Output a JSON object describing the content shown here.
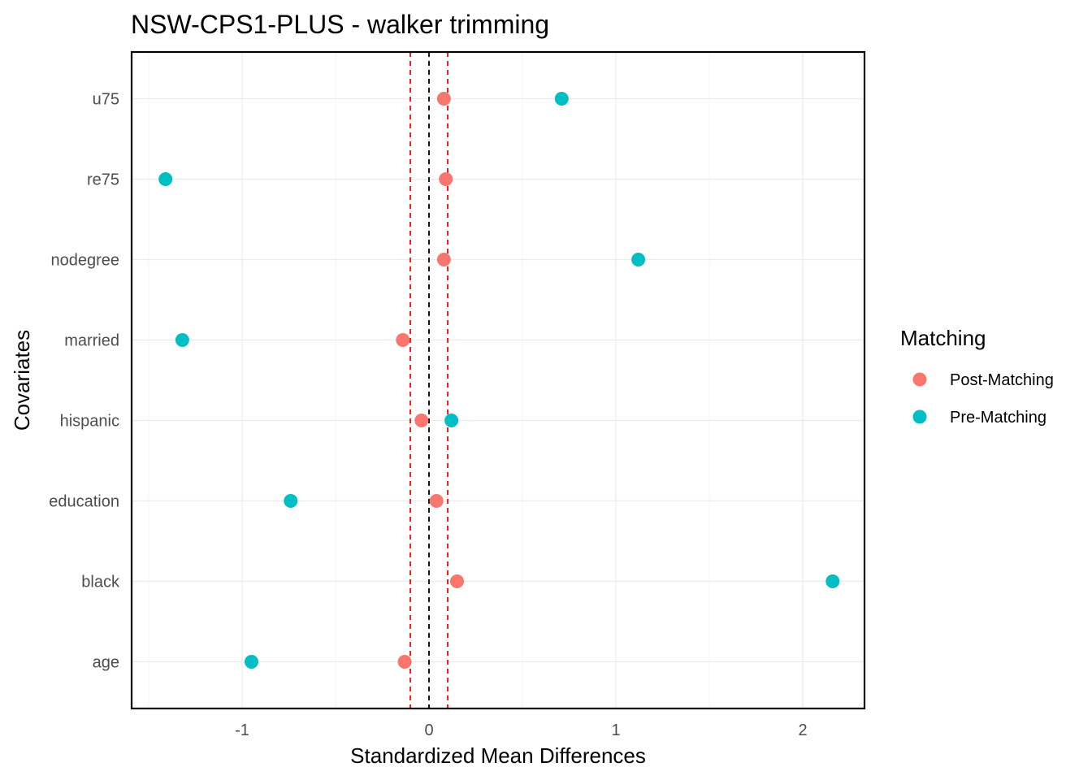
{
  "chart_data": {
    "type": "scatter",
    "title": "NSW-CPS1-PLUS - walker trimming",
    "xlabel": "Standardized Mean Differences",
    "ylabel": "Covariates",
    "xlim": [
      -1.6,
      2.35
    ],
    "x_ticks": [
      {
        "value": -1,
        "label": "-1"
      },
      {
        "value": 0,
        "label": "0"
      },
      {
        "value": 1,
        "label": "1"
      },
      {
        "value": 2,
        "label": "2"
      }
    ],
    "categories": [
      "age",
      "black",
      "education",
      "hispanic",
      "married",
      "nodegree",
      "re75",
      "u75"
    ],
    "reference_lines": [
      {
        "value": 0,
        "color": "#000000",
        "style": "dashed"
      },
      {
        "value": -0.1,
        "color": "#ff0000",
        "style": "dashed"
      },
      {
        "value": 0.1,
        "color": "#ff0000",
        "style": "dashed"
      }
    ],
    "series": [
      {
        "name": "Post-Matching",
        "color": "#f8766d",
        "values": [
          -0.13,
          0.15,
          0.04,
          -0.04,
          -0.14,
          0.08,
          0.09,
          0.08
        ]
      },
      {
        "name": "Pre-Matching",
        "color": "#00bfc4",
        "values": [
          -0.95,
          2.16,
          -0.74,
          0.12,
          -1.32,
          1.12,
          -1.41,
          0.71
        ]
      }
    ],
    "grid": true,
    "legend": {
      "title": "Matching",
      "position": "right"
    }
  }
}
